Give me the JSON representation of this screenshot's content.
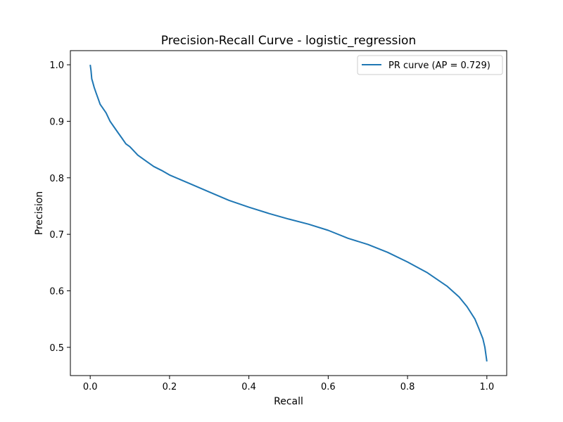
{
  "chart_data": {
    "type": "line",
    "title": "Precision-Recall Curve - logistic_regression",
    "xlabel": "Recall",
    "ylabel": "Precision",
    "xlim": [
      -0.05,
      1.05
    ],
    "ylim": [
      0.45,
      1.025
    ],
    "x_ticks": [
      0.0,
      0.2,
      0.4,
      0.6,
      0.8,
      1.0
    ],
    "x_tick_labels": [
      "0.0",
      "0.2",
      "0.4",
      "0.6",
      "0.8",
      "1.0"
    ],
    "y_ticks": [
      0.5,
      0.6,
      0.7,
      0.8,
      0.9,
      1.0
    ],
    "y_tick_labels": [
      "0.5",
      "0.6",
      "0.7",
      "0.8",
      "0.9",
      "1.0"
    ],
    "grid": false,
    "legend_position": "top-right",
    "series": [
      {
        "name": "PR curve (AP = 0.729)",
        "color": "#1f77b4",
        "x": [
          0.0,
          0.002,
          0.004,
          0.006,
          0.008,
          0.01,
          0.015,
          0.02,
          0.025,
          0.03,
          0.04,
          0.05,
          0.06,
          0.07,
          0.08,
          0.09,
          0.1,
          0.12,
          0.14,
          0.16,
          0.18,
          0.2,
          0.25,
          0.3,
          0.35,
          0.4,
          0.45,
          0.5,
          0.55,
          0.6,
          0.65,
          0.7,
          0.75,
          0.8,
          0.85,
          0.9,
          0.93,
          0.95,
          0.97,
          0.98,
          0.99,
          0.995,
          1.0
        ],
        "y": [
          1.0,
          0.99,
          0.975,
          0.97,
          0.965,
          0.96,
          0.95,
          0.94,
          0.93,
          0.925,
          0.915,
          0.9,
          0.89,
          0.88,
          0.87,
          0.86,
          0.855,
          0.84,
          0.83,
          0.82,
          0.813,
          0.805,
          0.79,
          0.775,
          0.76,
          0.748,
          0.737,
          0.727,
          0.718,
          0.707,
          0.693,
          0.682,
          0.668,
          0.651,
          0.632,
          0.608,
          0.589,
          0.572,
          0.55,
          0.533,
          0.515,
          0.5,
          0.475
        ]
      }
    ]
  }
}
